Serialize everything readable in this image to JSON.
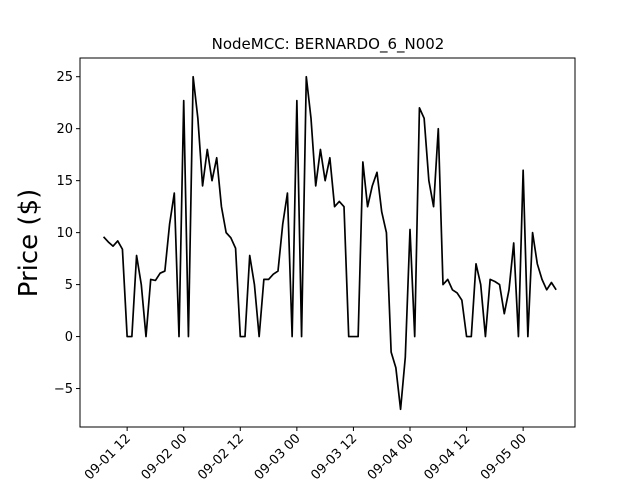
{
  "chart_data": {
    "type": "line",
    "title": "NodeMCC: BERNARDO_6_N002",
    "y_label": "Price ($)",
    "color": "#000000",
    "x": [
      "09-01 07",
      "09-01 08",
      "09-01 09",
      "09-01 10",
      "09-01 11",
      "09-01 12",
      "09-01 13",
      "09-01 14",
      "09-01 15",
      "09-01 16",
      "09-01 17",
      "09-01 18",
      "09-01 19",
      "09-01 20",
      "09-01 21",
      "09-01 22",
      "09-01 23",
      "09-02 00",
      "09-02 01",
      "09-02 02",
      "09-02 03",
      "09-02 04",
      "09-02 05",
      "09-02 06",
      "09-02 07",
      "09-02 08",
      "09-02 09",
      "09-02 10",
      "09-02 11",
      "09-02 12",
      "09-02 13",
      "09-02 14",
      "09-02 15",
      "09-02 16",
      "09-02 17",
      "09-02 18",
      "09-02 19",
      "09-02 20",
      "09-02 21",
      "09-02 22",
      "09-02 23",
      "09-03 00",
      "09-03 01",
      "09-03 02",
      "09-03 03",
      "09-03 04",
      "09-03 05",
      "09-03 06",
      "09-03 07",
      "09-03 08",
      "09-03 09",
      "09-03 10",
      "09-03 11",
      "09-03 12",
      "09-03 13",
      "09-03 14",
      "09-03 15",
      "09-03 16",
      "09-03 17",
      "09-03 18",
      "09-03 19",
      "09-03 20",
      "09-03 21",
      "09-03 22",
      "09-03 23",
      "09-04 00",
      "09-04 01",
      "09-04 02",
      "09-04 03",
      "09-04 04",
      "09-04 05",
      "09-04 06",
      "09-04 07",
      "09-04 08",
      "09-04 09",
      "09-04 10",
      "09-04 11",
      "09-04 12",
      "09-04 13",
      "09-04 14",
      "09-04 15",
      "09-04 16",
      "09-04 17",
      "09-04 18",
      "09-04 19",
      "09-04 20",
      "09-04 21",
      "09-04 22",
      "09-04 23",
      "09-05 00",
      "09-05 01",
      "09-05 02",
      "09-05 03",
      "09-05 04",
      "09-05 05",
      "09-05 06",
      "09-05 07"
    ],
    "values": [
      9.6,
      9.1,
      8.7,
      9.2,
      8.4,
      0,
      0,
      7.8,
      5.0,
      0,
      5.5,
      5.4,
      6.1,
      6.3,
      10.8,
      13.8,
      0,
      22.7,
      0,
      25.0,
      21,
      14.5,
      18,
      15,
      17.2,
      12.5,
      10,
      9.5,
      8.5,
      0,
      0,
      7.8,
      5.0,
      0,
      5.5,
      5.5,
      6.0,
      6.3,
      10.8,
      13.8,
      0,
      22.7,
      0,
      25.0,
      21,
      14.5,
      18,
      15,
      17.2,
      12.5,
      13,
      12.5,
      0,
      0,
      0,
      16.8,
      12.5,
      14.5,
      15.8,
      12,
      10,
      -1.5,
      -3,
      -7,
      -2,
      10.3,
      0,
      22,
      21,
      15,
      12.5,
      20,
      5,
      5.5,
      4.5,
      4.2,
      3.5,
      0,
      0,
      7,
      5,
      0,
      5.5,
      5.3,
      5.0,
      2.2,
      4.5,
      9,
      0,
      16,
      0,
      10,
      7,
      5.5,
      4.5,
      5.2,
      4.5
    ],
    "xlim": [
      "09-01 02",
      "09-05 11"
    ],
    "xticks": [
      "09-01 12",
      "09-02 00",
      "09-02 12",
      "09-03 00",
      "09-03 12",
      "09-04 00",
      "09-04 12",
      "09-05 00"
    ],
    "ylim": [
      -8.7,
      26.8
    ],
    "yticks": [
      {
        "value": -5,
        "label": "−5"
      },
      0,
      5,
      10,
      15,
      20,
      25
    ]
  }
}
